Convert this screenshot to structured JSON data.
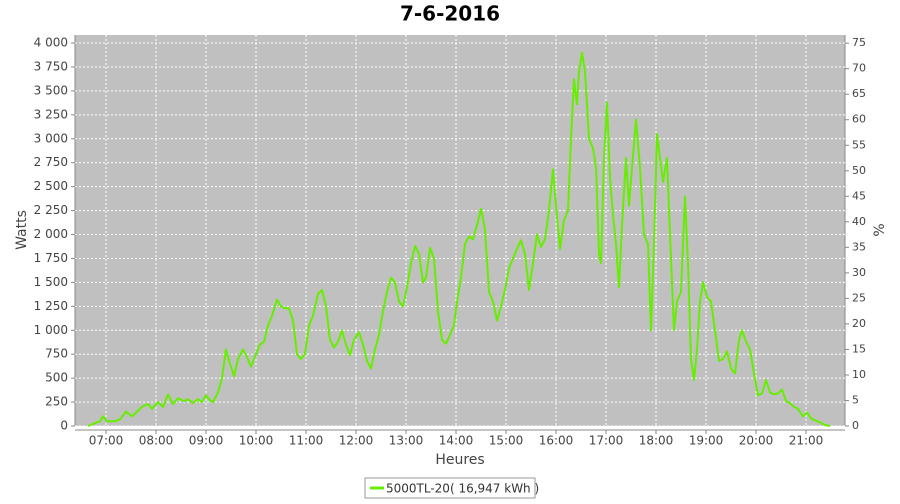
{
  "chart_data": {
    "type": "line",
    "title": "7-6-2016",
    "x_label": "Heures",
    "y_label": "Watts",
    "y2_label": "%",
    "x": [
      6.64,
      6.78,
      6.88,
      6.94,
      7.02,
      7.18,
      7.28,
      7.4,
      7.52,
      7.62,
      7.72,
      7.84,
      7.92,
      8.04,
      8.14,
      8.24,
      8.34,
      8.44,
      8.56,
      8.64,
      8.74,
      8.84,
      8.92,
      9.0,
      9.08,
      9.14,
      9.24,
      9.32,
      9.4,
      9.48,
      9.56,
      9.64,
      9.74,
      9.82,
      9.9,
      10.0,
      10.08,
      10.16,
      10.24,
      10.32,
      10.42,
      10.5,
      10.58,
      10.66,
      10.74,
      10.82,
      10.9,
      10.98,
      11.06,
      11.14,
      11.24,
      11.32,
      11.4,
      11.48,
      11.56,
      11.64,
      11.72,
      11.8,
      11.88,
      11.96,
      12.06,
      12.14,
      12.22,
      12.3,
      12.38,
      12.46,
      12.54,
      12.62,
      12.7,
      12.78,
      12.86,
      12.94,
      13.02,
      13.1,
      13.18,
      13.26,
      13.34,
      13.4,
      13.48,
      13.56,
      13.64,
      13.72,
      13.8,
      13.88,
      13.96,
      14.02,
      14.1,
      14.18,
      14.26,
      14.34,
      14.42,
      14.5,
      14.58,
      14.66,
      14.74,
      14.82,
      14.9,
      14.98,
      15.06,
      15.14,
      15.22,
      15.3,
      15.38,
      15.46,
      15.54,
      15.62,
      15.7,
      15.78,
      15.86,
      15.94,
      16.0,
      16.08,
      16.16,
      16.24,
      16.3,
      16.36,
      16.42,
      16.46,
      16.52,
      16.58,
      16.66,
      16.74,
      16.8,
      16.86,
      16.9,
      16.96,
      17.02,
      17.08,
      17.14,
      17.2,
      17.26,
      17.32,
      17.4,
      17.46,
      17.52,
      17.6,
      17.68,
      17.76,
      17.84,
      17.9,
      17.96,
      18.02,
      18.08,
      18.14,
      18.22,
      18.28,
      18.36,
      18.42,
      18.5,
      18.58,
      18.64,
      18.7,
      18.76,
      18.82,
      18.88,
      18.94,
      19.02,
      19.1,
      19.18,
      19.26,
      19.34,
      19.42,
      19.5,
      19.58,
      19.66,
      19.72,
      19.8,
      19.88,
      19.96,
      20.04,
      20.12,
      20.2,
      20.28,
      20.36,
      20.44,
      20.52,
      20.6,
      20.68,
      20.76,
      20.84,
      20.94,
      21.02,
      21.1,
      21.18,
      21.28,
      21.38,
      21.48
    ],
    "series": [
      {
        "name": "5000TL-20( 16,947 kWh )",
        "color": "#66ee00",
        "values": [
          0,
          30,
          50,
          100,
          50,
          50,
          70,
          150,
          100,
          150,
          200,
          230,
          180,
          250,
          200,
          330,
          230,
          290,
          260,
          280,
          240,
          280,
          250,
          320,
          270,
          250,
          350,
          500,
          800,
          650,
          520,
          700,
          800,
          720,
          620,
          750,
          850,
          880,
          1050,
          1150,
          1320,
          1250,
          1230,
          1230,
          1100,
          750,
          700,
          750,
          1050,
          1150,
          1380,
          1420,
          1250,
          900,
          820,
          880,
          1000,
          850,
          740,
          900,
          980,
          850,
          680,
          600,
          800,
          950,
          1200,
          1400,
          1550,
          1500,
          1300,
          1250,
          1450,
          1700,
          1880,
          1800,
          1500,
          1550,
          1860,
          1750,
          1200,
          900,
          860,
          950,
          1050,
          1300,
          1550,
          1900,
          1980,
          1950,
          2100,
          2270,
          2050,
          1400,
          1300,
          1100,
          1250,
          1420,
          1650,
          1750,
          1850,
          1940,
          1800,
          1420,
          1700,
          2000,
          1870,
          1950,
          2250,
          2680,
          2300,
          1850,
          2150,
          2250,
          3000,
          3620,
          3360,
          3700,
          3900,
          3700,
          3000,
          2900,
          2700,
          1800,
          1700,
          2800,
          3380,
          2600,
          2200,
          1900,
          1450,
          2100,
          2800,
          2300,
          2700,
          3200,
          2700,
          2000,
          1900,
          1000,
          1900,
          3050,
          2800,
          2550,
          2800,
          2000,
          1000,
          1300,
          1400,
          2400,
          1700,
          700,
          480,
          800,
          1300,
          1500,
          1350,
          1300,
          1000,
          680,
          700,
          780,
          600,
          550,
          900,
          1000,
          880,
          800,
          550,
          320,
          340,
          480,
          350,
          330,
          340,
          380,
          260,
          240,
          200,
          180,
          100,
          140,
          80,
          60,
          40,
          10,
          0
        ]
      }
    ],
    "xlim": [
      6.38,
      21.78
    ],
    "xticks": [
      {
        "value": 7,
        "label": "07:00"
      },
      {
        "value": 8,
        "label": "08:00"
      },
      {
        "value": 9,
        "label": "09:00"
      },
      {
        "value": 10,
        "label": "10:00"
      },
      {
        "value": 11,
        "label": "11:00"
      },
      {
        "value": 12,
        "label": "12:00"
      },
      {
        "value": 13,
        "label": "13:00"
      },
      {
        "value": 14,
        "label": "14:00"
      },
      {
        "value": 15,
        "label": "15:00"
      },
      {
        "value": 16,
        "label": "16:00"
      },
      {
        "value": 17,
        "label": "17:00"
      },
      {
        "value": 18,
        "label": "18:00"
      },
      {
        "value": 19,
        "label": "19:00"
      },
      {
        "value": 20,
        "label": "20:00"
      },
      {
        "value": 21,
        "label": "21:00"
      }
    ],
    "ylim": [
      0,
      4084
    ],
    "yticks": [
      0,
      250,
      500,
      750,
      {
        "value": 1000,
        "label": "1 000"
      },
      {
        "value": 1250,
        "label": "1 250"
      },
      {
        "value": 1500,
        "label": "1 500"
      },
      {
        "value": 1750,
        "label": "1 750"
      },
      {
        "value": 2000,
        "label": "2 000"
      },
      {
        "value": 2250,
        "label": "2 250"
      },
      {
        "value": 2500,
        "label": "2 500"
      },
      {
        "value": 2750,
        "label": "2 750"
      },
      {
        "value": 3000,
        "label": "3 000"
      },
      {
        "value": 3250,
        "label": "3 250"
      },
      {
        "value": 3500,
        "label": "3 500"
      },
      {
        "value": 3750,
        "label": "3 750"
      },
      {
        "value": 4000,
        "label": "4 000"
      }
    ],
    "y2lim": [
      0,
      76.6
    ],
    "y2ticks": [
      0,
      5,
      10,
      15,
      20,
      25,
      30,
      35,
      40,
      45,
      50,
      55,
      60,
      65,
      70,
      75
    ],
    "grid": true,
    "legend": "bottom"
  }
}
